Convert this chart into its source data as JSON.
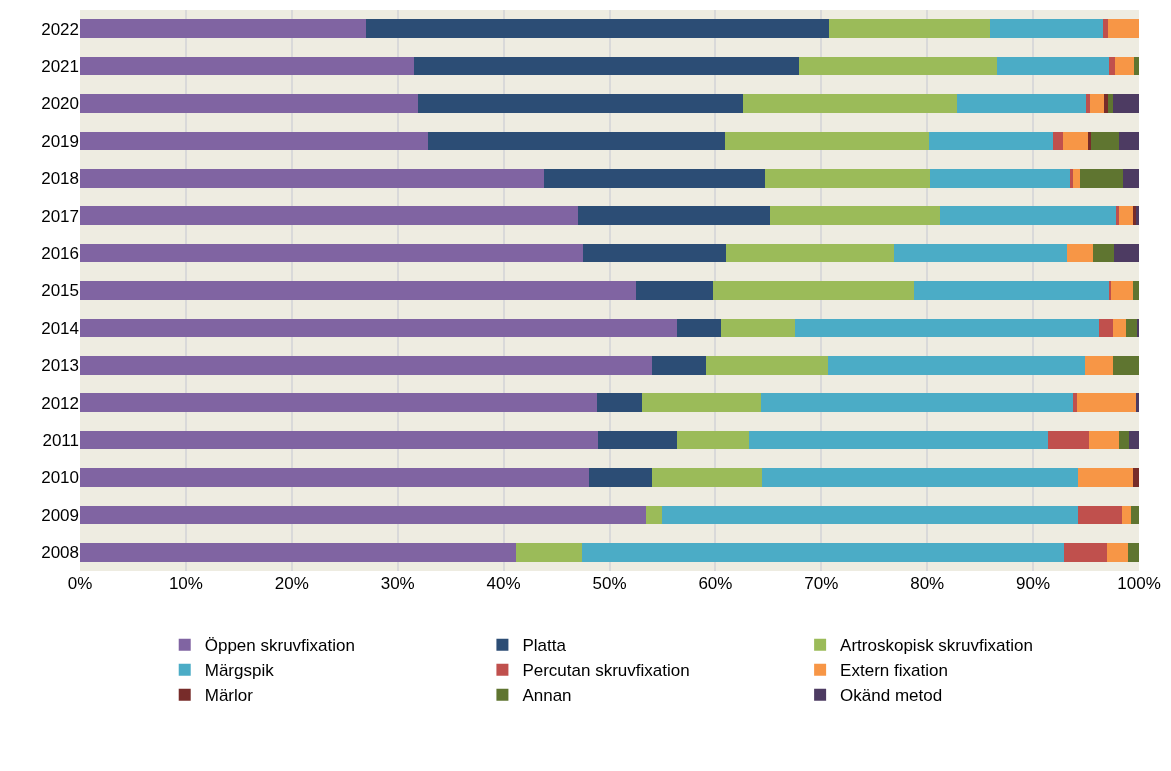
{
  "chart_data": {
    "type": "bar",
    "orientation": "horizontal",
    "stacked": true,
    "categories": [
      "2022",
      "2021",
      "2020",
      "2019",
      "2018",
      "2017",
      "2016",
      "2015",
      "2014",
      "2013",
      "2012",
      "2011",
      "2010",
      "2009",
      "2008"
    ],
    "series": [
      {
        "name": "Öppen skruvfixation",
        "color": "#8064a2",
        "values": [
          27.0,
          31.5,
          31.9,
          32.9,
          43.8,
          47.0,
          47.5,
          52.5,
          56.4,
          54.0,
          48.8,
          48.9,
          48.1,
          53.4,
          41.2
        ]
      },
      {
        "name": "Platta",
        "color": "#2c4d75",
        "values": [
          43.7,
          36.4,
          30.7,
          28.0,
          20.9,
          18.2,
          13.5,
          7.3,
          4.1,
          5.1,
          4.3,
          7.5,
          5.9,
          0,
          0
        ]
      },
      {
        "name": "Artroskopisk skruvfixation",
        "color": "#9bbb59",
        "values": [
          15.2,
          18.7,
          20.2,
          19.3,
          15.6,
          16.0,
          15.9,
          19.0,
          7.0,
          11.5,
          11.2,
          6.8,
          10.4,
          1.6,
          6.2
        ]
      },
      {
        "name": "Märgspik",
        "color": "#4bacc6",
        "values": [
          10.7,
          10.6,
          12.2,
          11.7,
          13.2,
          16.6,
          16.3,
          18.4,
          28.7,
          24.3,
          29.5,
          28.2,
          29.8,
          39.2,
          45.5
        ]
      },
      {
        "name": "Percutan skruvfixation",
        "color": "#c0504d",
        "values": [
          0.5,
          0.5,
          0.4,
          0.9,
          0.3,
          0.3,
          0,
          0.2,
          1.3,
          0,
          0.3,
          3.9,
          0,
          4.2,
          4.1
        ]
      },
      {
        "name": "Extern fixation",
        "color": "#f79646",
        "values": [
          2.9,
          1.8,
          1.3,
          2.4,
          0.6,
          1.3,
          2.5,
          2.0,
          1.3,
          2.6,
          5.6,
          2.8,
          5.2,
          0.8,
          2.0
        ]
      },
      {
        "name": "Märlor",
        "color": "#772c2a",
        "values": [
          0,
          0,
          0.4,
          0.3,
          0,
          0.3,
          0,
          0,
          0,
          0,
          0,
          0,
          0.6,
          0,
          0
        ]
      },
      {
        "name": "Annan",
        "color": "#5f7530",
        "values": [
          0,
          0.5,
          0.4,
          2.6,
          4.1,
          0,
          1.9,
          0.6,
          1.0,
          2.5,
          0,
          1.0,
          0,
          0.8,
          1.0
        ]
      },
      {
        "name": "Okänd metod",
        "color": "#4d3b62",
        "values": [
          0,
          0,
          2.5,
          1.9,
          1.5,
          0.3,
          2.4,
          0,
          0.2,
          0,
          0.3,
          0.9,
          0,
          0,
          0
        ]
      }
    ],
    "xlim": [
      0,
      100
    ],
    "xticks": [
      {
        "value": 0,
        "label": "0%"
      },
      {
        "value": 10,
        "label": "10%"
      },
      {
        "value": 20,
        "label": "20%"
      },
      {
        "value": 30,
        "label": "30%"
      },
      {
        "value": 40,
        "label": "40%"
      },
      {
        "value": 50,
        "label": "50%"
      },
      {
        "value": 60,
        "label": "60%"
      },
      {
        "value": 70,
        "label": "70%"
      },
      {
        "value": 80,
        "label": "80%"
      },
      {
        "value": 90,
        "label": "90%"
      },
      {
        "value": 100,
        "label": "100%"
      }
    ],
    "grid": "x",
    "legend": "bottom"
  }
}
